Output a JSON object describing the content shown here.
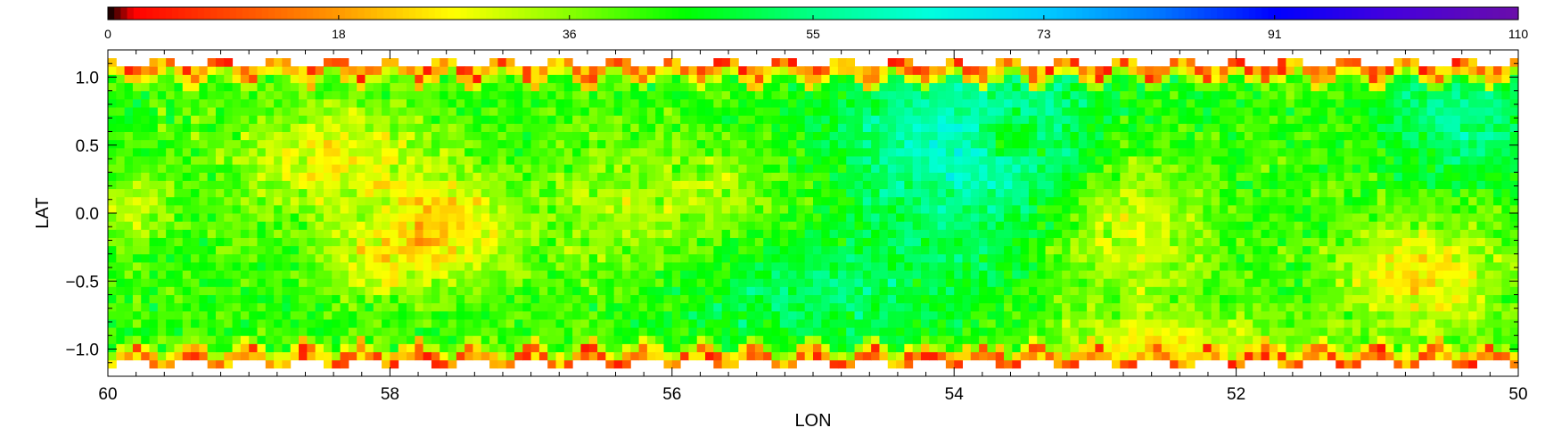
{
  "chart_data": {
    "type": "heatmap",
    "title": "",
    "xlabel": "LON",
    "ylabel": "LAT",
    "xlim": [
      60,
      50
    ],
    "ylim": [
      -1.2,
      1.2
    ],
    "x_ticks": [
      60,
      58,
      56,
      54,
      52,
      50
    ],
    "x_tick_labels": [
      "60",
      "58",
      "56",
      "54",
      "52",
      "50"
    ],
    "y_ticks": [
      1.0,
      0.5,
      0.0,
      -0.5,
      -1.0
    ],
    "y_tick_labels": [
      "1.0",
      "0.5",
      "0.0",
      "−0.5",
      "−1.0"
    ],
    "colorbar": {
      "min": 0,
      "max": 110,
      "ticks": [
        0,
        18,
        36,
        55,
        73,
        91,
        110
      ],
      "tick_labels": [
        "0",
        "18",
        "36",
        "55",
        "73",
        "91",
        "110"
      ],
      "stops": [
        {
          "value": 0,
          "color": "#000000"
        },
        {
          "value": 2,
          "color": "#ff0000"
        },
        {
          "value": 18,
          "color": "#ff9900"
        },
        {
          "value": 27,
          "color": "#ffff00"
        },
        {
          "value": 36,
          "color": "#88ff00"
        },
        {
          "value": 45,
          "color": "#00ff00"
        },
        {
          "value": 55,
          "color": "#00ff88"
        },
        {
          "value": 64,
          "color": "#00ffdd"
        },
        {
          "value": 73,
          "color": "#00ccff"
        },
        {
          "value": 82,
          "color": "#0077ff"
        },
        {
          "value": 91,
          "color": "#0000ff"
        },
        {
          "value": 100,
          "color": "#4400dd"
        },
        {
          "value": 110,
          "color": "#6a0daa"
        }
      ]
    },
    "lat_coverage": {
      "center": 1.1,
      "amplitude": 0.05,
      "period_deg": 0.4
    },
    "value_field": {
      "baseline": 42,
      "noise": 6,
      "features": [
        {
          "lon": 53.8,
          "lat": 0.5,
          "sigma_lon": 0.8,
          "sigma_lat": 0.5,
          "delta": 20
        },
        {
          "lon": 55.0,
          "lat": -0.6,
          "sigma_lon": 0.8,
          "sigma_lat": 0.35,
          "delta": 10
        },
        {
          "lon": 50.4,
          "lat": 0.7,
          "sigma_lon": 0.4,
          "sigma_lat": 0.3,
          "delta": 14
        },
        {
          "lon": 58.4,
          "lat": 0.4,
          "sigma_lon": 0.5,
          "sigma_lat": 0.3,
          "delta": -14
        },
        {
          "lon": 57.6,
          "lat": -0.1,
          "sigma_lon": 0.3,
          "sigma_lat": 0.25,
          "delta": -18
        },
        {
          "lon": 58.1,
          "lat": -0.35,
          "sigma_lon": 0.3,
          "sigma_lat": 0.2,
          "delta": -12
        },
        {
          "lon": 52.8,
          "lat": 0.0,
          "sigma_lon": 0.4,
          "sigma_lat": 0.45,
          "delta": -16
        },
        {
          "lon": 52.5,
          "lat": -0.95,
          "sigma_lon": 0.6,
          "sigma_lat": 0.15,
          "delta": -14
        },
        {
          "lon": 50.7,
          "lat": -0.45,
          "sigma_lon": 0.4,
          "sigma_lat": 0.3,
          "delta": -17
        },
        {
          "lon": 59.8,
          "lat": 0.05,
          "sigma_lon": 0.15,
          "sigma_lat": 0.15,
          "delta": -12
        },
        {
          "lon": 55.6,
          "lat": 0.15,
          "sigma_lon": 0.6,
          "sigma_lat": 0.3,
          "delta": -8
        },
        {
          "lon": 53.6,
          "lat": 0.55,
          "sigma_lon": 0.15,
          "sigma_lat": 0.1,
          "delta": -18
        },
        {
          "lon": 56.4,
          "lat": -0.1,
          "sigma_lon": 0.5,
          "sigma_lat": 0.4,
          "delta": -6
        }
      ]
    }
  }
}
